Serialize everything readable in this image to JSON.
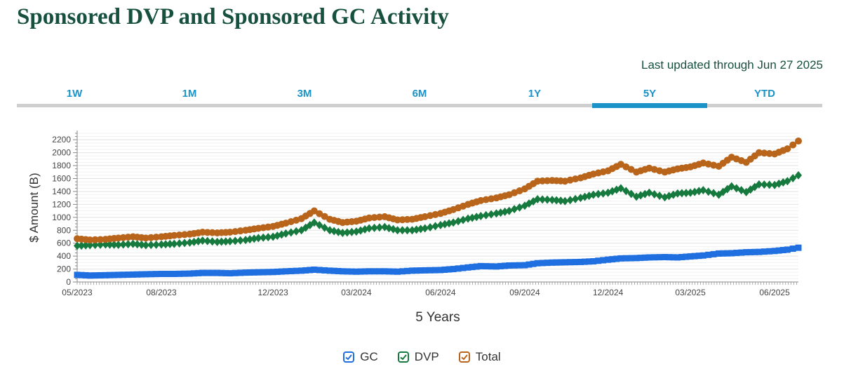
{
  "page": {
    "title": "Sponsored DVP and Sponsored GC Activity",
    "last_updated": "Last updated through Jun 27 2025"
  },
  "tabs": [
    {
      "label": "1W",
      "active": false
    },
    {
      "label": "1M",
      "active": false
    },
    {
      "label": "3M",
      "active": false
    },
    {
      "label": "6M",
      "active": false
    },
    {
      "label": "1Y",
      "active": false
    },
    {
      "label": "5Y",
      "active": true
    },
    {
      "label": "YTD",
      "active": false
    }
  ],
  "chart_data": {
    "type": "line",
    "xlabel": "5 Years",
    "ylabel": "$ Amount (B)",
    "ylim": [
      0,
      2300
    ],
    "yticks": [
      0,
      200,
      400,
      600,
      800,
      1000,
      1200,
      1400,
      1600,
      1800,
      2000,
      2200
    ],
    "xlim": [
      "2023-05-01",
      "2025-06-27"
    ],
    "xticks": [
      {
        "date": "2023-05-01",
        "label": "05/2023"
      },
      {
        "date": "2023-08-01",
        "label": "08/2023"
      },
      {
        "date": "2023-12-01",
        "label": "12/2023"
      },
      {
        "date": "2024-03-01",
        "label": "03/2024"
      },
      {
        "date": "2024-06-01",
        "label": "06/2024"
      },
      {
        "date": "2024-09-01",
        "label": "09/2024"
      },
      {
        "date": "2024-12-01",
        "label": "12/2024"
      },
      {
        "date": "2025-03-01",
        "label": "03/2025"
      },
      {
        "date": "2025-06-01",
        "label": "06/2025"
      }
    ],
    "grid": true,
    "legend_position": "bottom",
    "series": [
      {
        "name": "GC",
        "color": "#1f6fe0",
        "marker": "square",
        "points": [
          [
            "2023-05-01",
            110
          ],
          [
            "2023-05-15",
            100
          ],
          [
            "2023-06-01",
            105
          ],
          [
            "2023-06-15",
            110
          ],
          [
            "2023-07-01",
            115
          ],
          [
            "2023-07-15",
            120
          ],
          [
            "2023-08-01",
            125
          ],
          [
            "2023-08-15",
            125
          ],
          [
            "2023-09-01",
            130
          ],
          [
            "2023-09-15",
            140
          ],
          [
            "2023-10-01",
            140
          ],
          [
            "2023-10-15",
            135
          ],
          [
            "2023-11-01",
            145
          ],
          [
            "2023-11-15",
            150
          ],
          [
            "2023-12-01",
            155
          ],
          [
            "2023-12-15",
            165
          ],
          [
            "2024-01-01",
            175
          ],
          [
            "2024-01-15",
            190
          ],
          [
            "2024-02-01",
            175
          ],
          [
            "2024-02-15",
            165
          ],
          [
            "2024-03-01",
            160
          ],
          [
            "2024-03-15",
            165
          ],
          [
            "2024-04-01",
            165
          ],
          [
            "2024-04-15",
            160
          ],
          [
            "2024-05-01",
            175
          ],
          [
            "2024-05-15",
            180
          ],
          [
            "2024-06-01",
            185
          ],
          [
            "2024-06-15",
            200
          ],
          [
            "2024-07-01",
            225
          ],
          [
            "2024-07-15",
            245
          ],
          [
            "2024-08-01",
            240
          ],
          [
            "2024-08-15",
            255
          ],
          [
            "2024-09-01",
            260
          ],
          [
            "2024-09-15",
            290
          ],
          [
            "2024-10-01",
            300
          ],
          [
            "2024-10-15",
            305
          ],
          [
            "2024-11-01",
            310
          ],
          [
            "2024-11-15",
            320
          ],
          [
            "2024-12-01",
            345
          ],
          [
            "2024-12-15",
            365
          ],
          [
            "2025-01-01",
            370
          ],
          [
            "2025-01-15",
            380
          ],
          [
            "2025-02-01",
            385
          ],
          [
            "2025-02-15",
            380
          ],
          [
            "2025-03-01",
            395
          ],
          [
            "2025-03-15",
            410
          ],
          [
            "2025-04-01",
            440
          ],
          [
            "2025-04-15",
            445
          ],
          [
            "2025-05-01",
            460
          ],
          [
            "2025-05-15",
            465
          ],
          [
            "2025-06-01",
            480
          ],
          [
            "2025-06-15",
            500
          ],
          [
            "2025-06-27",
            530
          ]
        ]
      },
      {
        "name": "DVP",
        "color": "#167a3e",
        "marker": "diamond",
        "points": [
          [
            "2023-05-01",
            560
          ],
          [
            "2023-05-15",
            570
          ],
          [
            "2023-06-01",
            580
          ],
          [
            "2023-06-15",
            575
          ],
          [
            "2023-07-01",
            590
          ],
          [
            "2023-07-15",
            570
          ],
          [
            "2023-08-01",
            580
          ],
          [
            "2023-08-15",
            590
          ],
          [
            "2023-09-01",
            610
          ],
          [
            "2023-09-15",
            640
          ],
          [
            "2023-10-01",
            620
          ],
          [
            "2023-10-15",
            630
          ],
          [
            "2023-11-01",
            650
          ],
          [
            "2023-11-15",
            680
          ],
          [
            "2023-12-01",
            700
          ],
          [
            "2023-12-15",
            750
          ],
          [
            "2024-01-01",
            800
          ],
          [
            "2024-01-15",
            920
          ],
          [
            "2024-02-01",
            800
          ],
          [
            "2024-02-15",
            760
          ],
          [
            "2024-03-01",
            780
          ],
          [
            "2024-03-15",
            830
          ],
          [
            "2024-04-01",
            850
          ],
          [
            "2024-04-15",
            800
          ],
          [
            "2024-05-01",
            800
          ],
          [
            "2024-05-15",
            830
          ],
          [
            "2024-06-01",
            880
          ],
          [
            "2024-06-15",
            920
          ],
          [
            "2024-07-01",
            980
          ],
          [
            "2024-07-15",
            1020
          ],
          [
            "2024-08-01",
            1060
          ],
          [
            "2024-08-15",
            1100
          ],
          [
            "2024-09-01",
            1180
          ],
          [
            "2024-09-15",
            1280
          ],
          [
            "2024-10-01",
            1270
          ],
          [
            "2024-10-15",
            1250
          ],
          [
            "2024-11-01",
            1300
          ],
          [
            "2024-11-15",
            1350
          ],
          [
            "2024-12-01",
            1380
          ],
          [
            "2024-12-15",
            1450
          ],
          [
            "2025-01-01",
            1320
          ],
          [
            "2025-01-15",
            1380
          ],
          [
            "2025-02-01",
            1310
          ],
          [
            "2025-02-15",
            1370
          ],
          [
            "2025-03-01",
            1380
          ],
          [
            "2025-03-15",
            1420
          ],
          [
            "2025-04-01",
            1350
          ],
          [
            "2025-04-15",
            1480
          ],
          [
            "2025-05-01",
            1390
          ],
          [
            "2025-05-15",
            1510
          ],
          [
            "2025-06-01",
            1500
          ],
          [
            "2025-06-15",
            1560
          ],
          [
            "2025-06-27",
            1650
          ]
        ]
      },
      {
        "name": "Total",
        "color": "#b8651b",
        "marker": "circle",
        "points": [
          [
            "2023-05-01",
            670
          ],
          [
            "2023-05-15",
            650
          ],
          [
            "2023-06-01",
            660
          ],
          [
            "2023-06-15",
            680
          ],
          [
            "2023-07-01",
            700
          ],
          [
            "2023-07-15",
            680
          ],
          [
            "2023-08-01",
            700
          ],
          [
            "2023-08-15",
            720
          ],
          [
            "2023-09-01",
            740
          ],
          [
            "2023-09-15",
            770
          ],
          [
            "2023-10-01",
            760
          ],
          [
            "2023-10-15",
            770
          ],
          [
            "2023-11-01",
            800
          ],
          [
            "2023-11-15",
            830
          ],
          [
            "2023-12-01",
            860
          ],
          [
            "2023-12-15",
            910
          ],
          [
            "2024-01-01",
            980
          ],
          [
            "2024-01-15",
            1100
          ],
          [
            "2024-02-01",
            970
          ],
          [
            "2024-02-15",
            920
          ],
          [
            "2024-03-01",
            940
          ],
          [
            "2024-03-15",
            990
          ],
          [
            "2024-04-01",
            1010
          ],
          [
            "2024-04-15",
            960
          ],
          [
            "2024-05-01",
            970
          ],
          [
            "2024-05-15",
            1010
          ],
          [
            "2024-06-01",
            1060
          ],
          [
            "2024-06-15",
            1120
          ],
          [
            "2024-07-01",
            1200
          ],
          [
            "2024-07-15",
            1260
          ],
          [
            "2024-08-01",
            1300
          ],
          [
            "2024-08-15",
            1350
          ],
          [
            "2024-09-01",
            1440
          ],
          [
            "2024-09-15",
            1560
          ],
          [
            "2024-10-01",
            1570
          ],
          [
            "2024-10-15",
            1560
          ],
          [
            "2024-11-01",
            1610
          ],
          [
            "2024-11-15",
            1670
          ],
          [
            "2024-12-01",
            1720
          ],
          [
            "2024-12-15",
            1820
          ],
          [
            "2025-01-01",
            1700
          ],
          [
            "2025-01-15",
            1760
          ],
          [
            "2025-02-01",
            1700
          ],
          [
            "2025-02-15",
            1750
          ],
          [
            "2025-03-01",
            1780
          ],
          [
            "2025-03-15",
            1840
          ],
          [
            "2025-04-01",
            1790
          ],
          [
            "2025-04-15",
            1930
          ],
          [
            "2025-05-01",
            1850
          ],
          [
            "2025-05-15",
            2000
          ],
          [
            "2025-06-01",
            1980
          ],
          [
            "2025-06-15",
            2060
          ],
          [
            "2025-06-27",
            2180
          ]
        ]
      }
    ]
  }
}
